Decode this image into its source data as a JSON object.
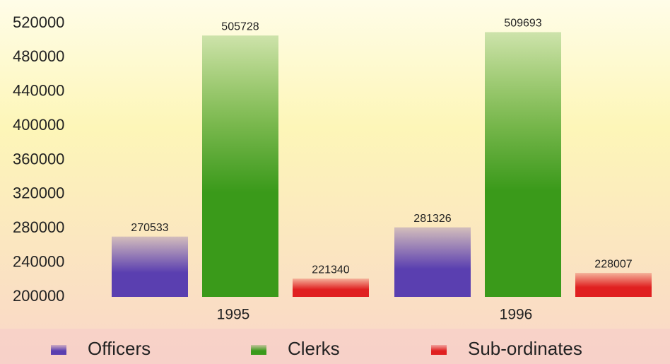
{
  "chart_data": {
    "type": "bar",
    "categories": [
      "1995",
      "1996"
    ],
    "series": [
      {
        "name": "Officers",
        "color": "#5a3fb0",
        "values": [
          270533,
          281326
        ]
      },
      {
        "name": "Clerks",
        "color": "#3a9a1a",
        "values": [
          505728,
          509693
        ]
      },
      {
        "name": "Sub-ordinates",
        "color": "#e02020",
        "values": [
          221340,
          228007
        ]
      }
    ],
    "ylim": [
      200000,
      520000
    ],
    "yticks": [
      200000,
      240000,
      280000,
      320000,
      360000,
      400000,
      440000,
      480000,
      520000
    ],
    "legend": "bottom"
  }
}
